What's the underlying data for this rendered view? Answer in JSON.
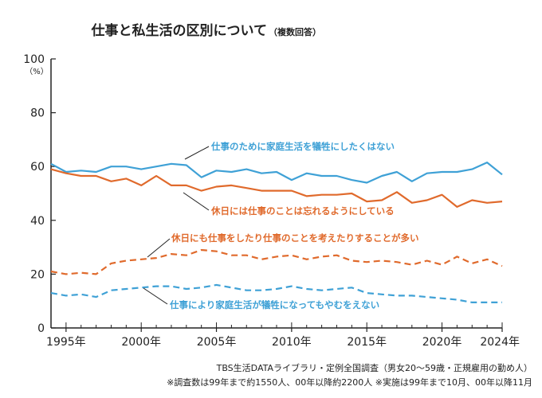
{
  "chart_data": {
    "type": "line",
    "title": "仕事と私生活の区別について",
    "title_note": "（複数回答）",
    "y_unit": "（%）",
    "ylim": [
      0,
      100
    ],
    "y_ticks": [
      "0",
      "20",
      "40",
      "60",
      "80",
      "100"
    ],
    "y_tick_values": [
      0,
      20,
      40,
      60,
      80,
      100
    ],
    "xlim": [
      1994,
      2024
    ],
    "x_tick_labels": [
      "1995年",
      "2000年",
      "2005年",
      "2010年",
      "2015年",
      "2020年",
      "2024年"
    ],
    "x_tick_values": [
      1995,
      2000,
      2005,
      2010,
      2015,
      2020,
      2024
    ],
    "grid": false,
    "x": [
      1994,
      1995,
      1996,
      1997,
      1998,
      1999,
      2000,
      2001,
      2002,
      2003,
      2004,
      2005,
      2006,
      2007,
      2008,
      2009,
      2010,
      2011,
      2012,
      2013,
      2014,
      2015,
      2016,
      2017,
      2018,
      2019,
      2020,
      2021,
      2022,
      2023,
      2024
    ],
    "series": [
      {
        "name": "仕事のために家庭生活を犠牲にしたくはない",
        "color": "#3fa1d6",
        "style": "solid",
        "values": [
          61.0,
          58.0,
          58.5,
          58.0,
          60.0,
          60.0,
          59.0,
          60.0,
          61.0,
          60.5,
          56.0,
          58.5,
          58.0,
          59.0,
          57.5,
          58.0,
          55.0,
          57.5,
          56.5,
          56.5,
          55.0,
          54.0,
          56.5,
          58.0,
          54.5,
          57.5,
          58.0,
          58.0,
          59.0,
          61.5,
          57.0
        ]
      },
      {
        "name": "休日には仕事のことは忘れるようにしている",
        "color": "#e06a2c",
        "style": "solid",
        "values": [
          59.0,
          57.5,
          56.5,
          56.5,
          54.5,
          55.5,
          53.0,
          56.5,
          53.0,
          53.0,
          51.0,
          52.5,
          53.0,
          52.0,
          51.0,
          51.0,
          51.0,
          49.0,
          49.5,
          49.5,
          50.0,
          47.0,
          47.5,
          50.5,
          46.5,
          47.5,
          49.5,
          45.0,
          47.5,
          46.5,
          47.0
        ]
      },
      {
        "name": "休日にも仕事をしたり仕事のことを考えたりすることが多い",
        "color": "#e06a2c",
        "style": "dashed",
        "values": [
          21.0,
          20.0,
          20.5,
          20.0,
          24.0,
          25.0,
          25.5,
          26.0,
          27.5,
          27.0,
          29.0,
          28.5,
          27.0,
          27.0,
          25.5,
          26.5,
          27.0,
          25.5,
          26.5,
          27.0,
          25.0,
          24.5,
          25.0,
          24.5,
          23.5,
          25.0,
          23.5,
          26.5,
          24.0,
          25.5,
          23.0
        ]
      },
      {
        "name": "仕事により家庭生活が犠牲になってもやむをえない",
        "color": "#3fa1d6",
        "style": "dashed",
        "values": [
          13.0,
          12.0,
          12.5,
          11.5,
          14.0,
          14.5,
          15.0,
          15.5,
          15.5,
          14.5,
          15.0,
          16.0,
          15.0,
          14.0,
          14.0,
          14.5,
          15.5,
          14.5,
          14.0,
          14.5,
          15.0,
          13.0,
          12.5,
          12.0,
          12.0,
          11.5,
          11.0,
          10.5,
          9.5,
          9.5,
          9.5
        ]
      }
    ]
  },
  "source": {
    "line1": "TBS生活DATAライブラリ・定例全国調査（男女20〜59歳・正規雇用の勤め人）",
    "line2": "※調査数は99年まで約1550人、00年以降約2200人 ※実施は99年まで10月、00年以降11月"
  }
}
